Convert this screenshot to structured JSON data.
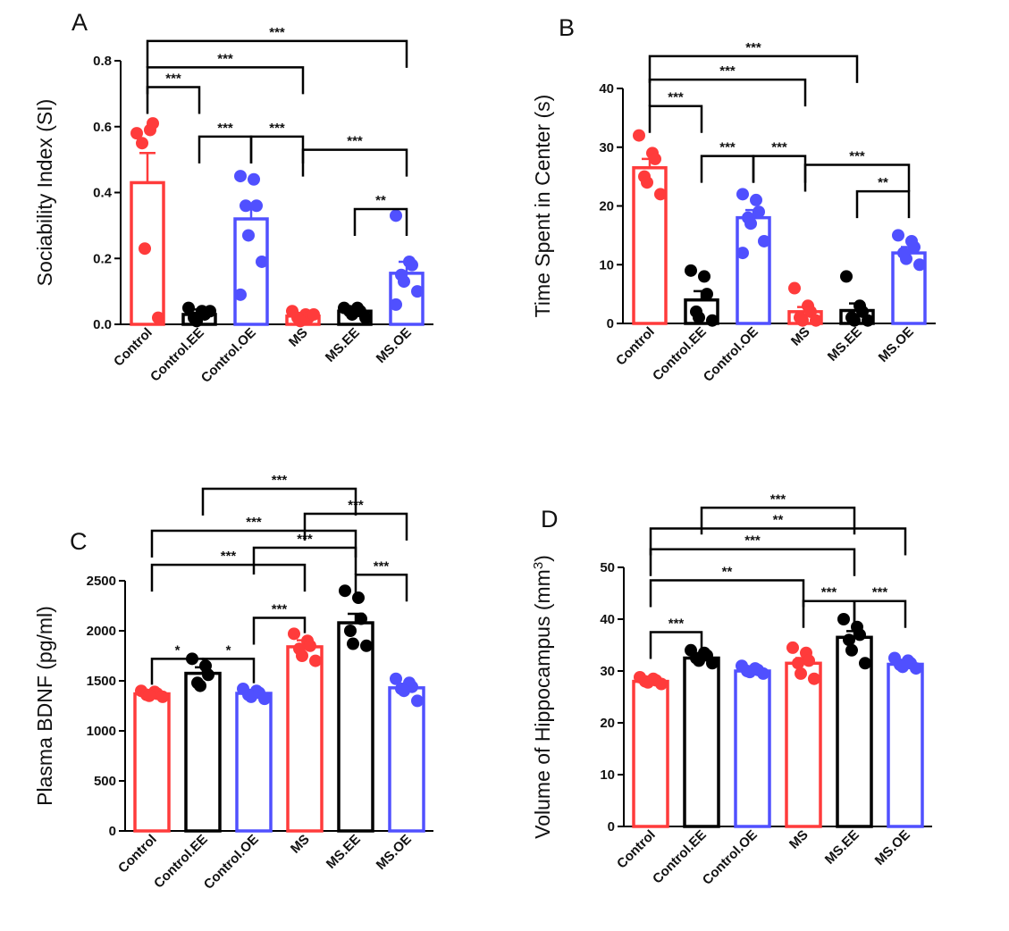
{
  "colors": {
    "red": "#ff3b3b",
    "black": "#000000",
    "blue": "#5050ff",
    "axis": "#000000"
  },
  "chart_data": [
    {
      "type": "bar",
      "panel": "A",
      "title": "",
      "ylabel": "Sociability Index (SI)",
      "ylim": [
        0,
        0.8
      ],
      "yticks": [
        0.0,
        0.2,
        0.4,
        0.6,
        0.8
      ],
      "ytick_labels": [
        "0.0",
        "0.2",
        "0.4",
        "0.6",
        "0.8"
      ],
      "categories": [
        "Control",
        "Control.EE",
        "Control.OE",
        "MS",
        "MS.EE",
        "MS.OE"
      ],
      "colors": [
        "red",
        "black",
        "blue",
        "red",
        "black",
        "blue"
      ],
      "values": [
        0.43,
        0.03,
        0.32,
        0.025,
        0.04,
        0.155
      ],
      "errors": [
        0.09,
        0.015,
        0.045,
        0.008,
        0.008,
        0.035
      ],
      "points": [
        [
          0.58,
          0.59,
          0.61,
          0.55,
          0.23,
          0.02
        ],
        [
          0.05,
          0.04,
          0.03,
          0.02,
          0.01,
          0.04
        ],
        [
          0.45,
          0.44,
          0.36,
          0.36,
          0.27,
          0.19,
          0.09
        ],
        [
          0.04,
          0.03,
          0.02,
          0.02,
          0.01,
          0.03
        ],
        [
          0.05,
          0.05,
          0.04,
          0.04,
          0.03,
          0.02
        ],
        [
          0.33,
          0.19,
          0.18,
          0.15,
          0.13,
          0.1,
          0.06
        ]
      ],
      "comparisons": [
        {
          "from": 0,
          "to": 1,
          "y": 0.72,
          "label": "***"
        },
        {
          "from": 2,
          "to": 3,
          "y": 0.57,
          "label": "***"
        },
        {
          "from": 1,
          "to": 2,
          "y": 0.57,
          "label": "***"
        },
        {
          "from": 0,
          "to": 3,
          "y": 0.78,
          "label": "***"
        },
        {
          "from": 0,
          "to": 5,
          "y": 0.86,
          "label": "***"
        },
        {
          "from": 3,
          "to": 5,
          "y": 0.53,
          "label": "***"
        },
        {
          "from": 4,
          "to": 5,
          "y": 0.35,
          "label": "**"
        }
      ]
    },
    {
      "type": "bar",
      "panel": "B",
      "title": "",
      "ylabel": "Time Spent in Center (s)",
      "ylim": [
        0,
        40
      ],
      "yticks": [
        0,
        10,
        20,
        30,
        40
      ],
      "ytick_labels": [
        "0",
        "10",
        "20",
        "30",
        "40"
      ],
      "categories": [
        "Control",
        "Control.EE",
        "Control.OE",
        "MS",
        "MS.EE",
        "MS.OE"
      ],
      "colors": [
        "red",
        "black",
        "blue",
        "red",
        "black",
        "blue"
      ],
      "values": [
        26.5,
        4.0,
        18.0,
        2.0,
        2.2,
        12.0
      ],
      "errors": [
        1.5,
        1.5,
        1.3,
        0.8,
        1.2,
        1.0
      ],
      "points": [
        [
          32,
          29,
          28,
          25,
          24,
          22
        ],
        [
          9,
          8,
          5,
          2,
          1,
          0.5
        ],
        [
          22,
          21,
          19,
          18,
          17,
          14,
          12
        ],
        [
          6,
          3,
          2,
          1,
          0.5,
          0.5
        ],
        [
          8,
          3,
          2,
          1,
          0.5,
          0.5
        ],
        [
          15,
          14,
          13,
          12,
          11,
          10
        ]
      ],
      "comparisons": [
        {
          "from": 0,
          "to": 1,
          "y": 37,
          "label": "***"
        },
        {
          "from": 1,
          "to": 2,
          "y": 28.5,
          "label": "***"
        },
        {
          "from": 2,
          "to": 3,
          "y": 28.5,
          "label": "***"
        },
        {
          "from": 0,
          "to": 3,
          "y": 41.5,
          "label": "***"
        },
        {
          "from": 0,
          "to": 4,
          "y": 45.5,
          "label": "***"
        },
        {
          "from": 3,
          "to": 5,
          "y": 27,
          "label": "***"
        },
        {
          "from": 4,
          "to": 5,
          "y": 22.5,
          "label": "**"
        }
      ]
    },
    {
      "type": "bar",
      "panel": "C",
      "title": "",
      "ylabel": "Plasma BDNF (pg/ml)",
      "ylim": [
        0,
        2500
      ],
      "yticks": [
        0,
        500,
        1000,
        1500,
        2000,
        2500
      ],
      "ytick_labels": [
        "0",
        "500",
        "1000",
        "1500",
        "2000",
        "2500"
      ],
      "categories": [
        "Control",
        "Control.EE",
        "Control.OE",
        "MS",
        "MS.EE",
        "MS.OE"
      ],
      "colors": [
        "red",
        "black",
        "blue",
        "red",
        "black",
        "blue"
      ],
      "values": [
        1370,
        1575,
        1375,
        1840,
        2080,
        1430
      ],
      "errors": [
        20,
        60,
        30,
        65,
        90,
        40
      ],
      "points": [
        [
          1400,
          1390,
          1370,
          1360,
          1350,
          1340
        ],
        [
          1720,
          1650,
          1560,
          1480,
          1450
        ],
        [
          1420,
          1400,
          1380,
          1360,
          1340,
          1320
        ],
        [
          1970,
          1900,
          1850,
          1820,
          1750,
          1700
        ],
        [
          2400,
          2330,
          2120,
          2000,
          1870,
          1850
        ],
        [
          1520,
          1480,
          1440,
          1420,
          1400,
          1300
        ]
      ],
      "comparisons": [
        {
          "from": 0,
          "to": 1,
          "y": 1720,
          "label": "*"
        },
        {
          "from": 1,
          "to": 2,
          "y": 1720,
          "label": "*"
        },
        {
          "from": 2,
          "to": 3,
          "y": 2130,
          "label": "***"
        },
        {
          "from": 0,
          "to": 3,
          "y": 2660,
          "label": "***"
        },
        {
          "from": 2,
          "to": 4,
          "y": 2830,
          "label": "***"
        },
        {
          "from": 4,
          "to": 5,
          "y": 2560,
          "label": "***"
        },
        {
          "from": 0,
          "to": 4,
          "y": 3000,
          "label": "***"
        },
        {
          "from": 3,
          "to": 5,
          "y": 3170,
          "label": "***"
        },
        {
          "from": 1,
          "to": 4,
          "y": 3420,
          "label": "***"
        }
      ]
    },
    {
      "type": "bar",
      "panel": "D",
      "title": "",
      "ylabel": "Volume of Hippocampus (mm",
      "ylabel_sup": "3",
      "ylabel_end": ")",
      "ylim": [
        0,
        50
      ],
      "yticks": [
        0,
        10,
        20,
        30,
        40,
        50
      ],
      "ytick_labels": [
        "0",
        "10",
        "20",
        "30",
        "40",
        "50"
      ],
      "categories": [
        "Control",
        "Control.EE",
        "Control.OE",
        "MS",
        "MS.EE",
        "MS.OE"
      ],
      "colors": [
        "red",
        "black",
        "blue",
        "red",
        "black",
        "blue"
      ],
      "values": [
        28.0,
        32.5,
        30.0,
        31.5,
        36.5,
        31.3
      ],
      "errors": [
        0.4,
        0.5,
        0.3,
        1.0,
        1.2,
        0.4
      ],
      "points": [
        [
          28.8,
          28.5,
          28.2,
          28.0,
          27.8,
          27.5
        ],
        [
          34.0,
          33.5,
          33.0,
          32.5,
          32.0,
          31.5
        ],
        [
          31.0,
          30.5,
          30.2,
          30.0,
          29.8,
          29.5
        ],
        [
          34.5,
          33.5,
          32.0,
          31.5,
          29.5,
          28.5
        ],
        [
          40.0,
          38.5,
          37.0,
          36.0,
          34.0,
          31.5
        ],
        [
          32.5,
          32.0,
          31.5,
          31.2,
          30.8,
          30.5
        ]
      ],
      "comparisons": [
        {
          "from": 0,
          "to": 1,
          "y": 37.5,
          "label": "***"
        },
        {
          "from": 3,
          "to": 4,
          "y": 43.5,
          "label": "***"
        },
        {
          "from": 4,
          "to": 5,
          "y": 43.5,
          "label": "***"
        },
        {
          "from": 0,
          "to": 3,
          "y": 47.5,
          "label": "**"
        },
        {
          "from": 0,
          "to": 4,
          "y": 53.5,
          "label": "***"
        },
        {
          "from": 0,
          "to": 5,
          "y": 57.5,
          "label": "**"
        },
        {
          "from": 1,
          "to": 4,
          "y": 61.5,
          "label": "***"
        }
      ]
    }
  ]
}
